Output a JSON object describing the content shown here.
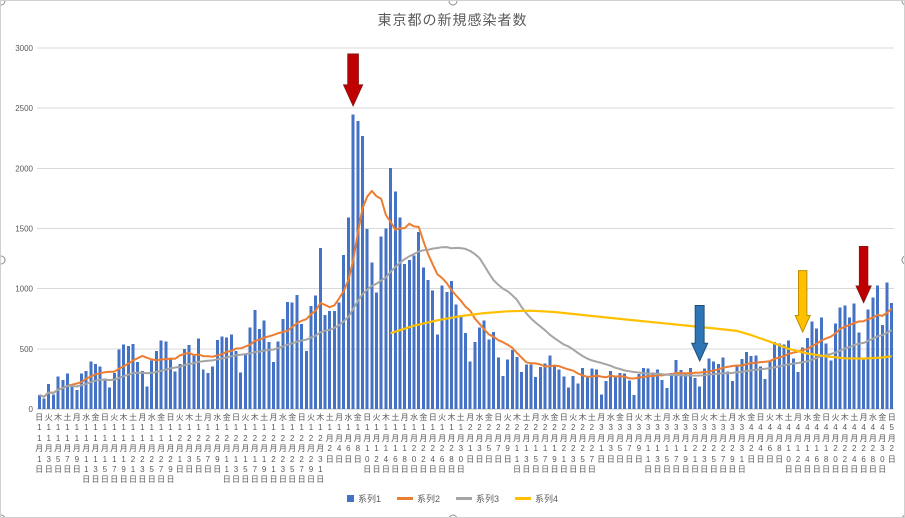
{
  "chart_data": {
    "type": "combo-bar-line",
    "title": "東京都の新規感染者数",
    "ylim": [
      0,
      3000
    ],
    "y_ticks": [
      0,
      500,
      1000,
      1500,
      2000,
      2500,
      3000
    ],
    "x_start_date": "2020-11-01",
    "x_end_date": "2021-05-02",
    "x_label_every_days": 2,
    "x_labels": [
      "日11月1日",
      "火11月3日",
      "木11月5日",
      "土11月7日",
      "月11月9日",
      "水11月11日",
      "金11月13日",
      "日11月15日",
      "火11月17日",
      "木11月19日",
      "土11月21日",
      "月11月23日",
      "水11月25日",
      "金11月27日",
      "日11月29日",
      "火12月1日",
      "木12月3日",
      "土12月5日",
      "月12月7日",
      "水12月9日",
      "金12月11日",
      "日12月13日",
      "火12月15日",
      "木12月17日",
      "土12月19日",
      "月12月21日",
      "水12月23日",
      "金12月25日",
      "日12月27日",
      "火12月29日",
      "木12月31日",
      "土1月2日",
      "月1月4日",
      "水1月6日",
      "金1月8日",
      "日1月10日",
      "火1月12日",
      "木1月14日",
      "土1月16日",
      "月1月18日",
      "水1月20日",
      "金1月22日",
      "日1月24日",
      "火1月26日",
      "木1月28日",
      "土1月30日",
      "月2月1日",
      "水2月3日",
      "金2月5日",
      "日2月7日",
      "火2月9日",
      "木2月11日",
      "土2月13日",
      "月2月15日",
      "水2月17日",
      "金2月19日",
      "日2月21日",
      "火2月23日",
      "木2月25日",
      "土2月27日",
      "月3月1日",
      "水3月3日",
      "金3月5日",
      "日3月7日",
      "火3月9日",
      "木3月11日",
      "土3月13日",
      "月3月15日",
      "水3月17日",
      "金3月19日",
      "日3月21日",
      "火3月23日",
      "木3月25日",
      "土3月27日",
      "月3月29日",
      "水3月31日",
      "金4月2日",
      "日4月4日",
      "火4月6日",
      "木4月8日",
      "土4月10日",
      "月4月12日",
      "水4月14日",
      "金4月16日",
      "日4月18日",
      "火4月20日",
      "木4月22日",
      "土4月24日",
      "月4月26日",
      "水4月28日",
      "金4月30日",
      "日5月2日"
    ],
    "series": [
      {
        "name": "系列1",
        "type": "bar",
        "color": "#4472C4",
        "values": [
          116,
          87,
          209,
          122,
          269,
          242,
          294,
          189,
          157,
          293,
          317,
          393,
          374,
          352,
          255,
          180,
          298,
          493,
          534,
          522,
          539,
          391,
          314,
          186,
          401,
          481,
          570,
          561,
          418,
          311,
          372,
          500,
          533,
          449,
          584,
          327,
          299,
          352,
          572,
          602,
          595,
          621,
          480,
          305,
          460,
          678,
          822,
          664,
          736,
          556,
          392,
          563,
          748,
          888,
          884,
          949,
          708,
          481,
          856,
          944,
          1337,
          783,
          814,
          816,
          884,
          1278,
          1591,
          2447,
          2392,
          2268,
          1494,
          1219,
          970,
          1433,
          1502,
          2001,
          1809,
          1592,
          1204,
          1240,
          1274,
          1471,
          1175,
          1070,
          986,
          618,
          1026,
          973,
          1064,
          868,
          769,
          633,
          393,
          556,
          676,
          734,
          577,
          639,
          429,
          276,
          412,
          491,
          434,
          307,
          369,
          371,
          266,
          350,
          378,
          445,
          353,
          327,
          272,
          178,
          275,
          213,
          340,
          270,
          337,
          329,
          121,
          232,
          316,
          279,
          301,
          293,
          237,
          116,
          290,
          340,
          335,
          304,
          330,
          239,
          175,
          300,
          409,
          323,
          303,
          342,
          256,
          187,
          337,
          420,
          394,
          376,
          430,
          313,
          234,
          364,
          414,
          475,
          440,
          446,
          355,
          249,
          399,
          555,
          545,
          537,
          570,
          421,
          306,
          510,
          591,
          729,
          667,
          759,
          543,
          405,
          711,
          843,
          861,
          759,
          876,
          635,
          425,
          828,
          925,
          1027,
          698,
          1050,
          879
        ]
      },
      {
        "name": "系列2",
        "type": "line",
        "color": "#ED7D31",
        "derived": "7-day trailing moving average of 系列1",
        "window": 7
      },
      {
        "name": "系列3",
        "type": "line",
        "color": "#A5A5A5",
        "derived": "28-day trailing moving average of 系列1",
        "window": 28
      },
      {
        "name": "系列4",
        "type": "line",
        "color": "#FFC000",
        "points": [
          [
            75,
            630
          ],
          [
            80,
            692
          ],
          [
            85,
            737
          ],
          [
            90,
            772
          ],
          [
            95,
            797
          ],
          [
            100,
            812
          ],
          [
            105,
            817
          ],
          [
            110,
            806
          ],
          [
            117,
            777
          ],
          [
            124,
            749
          ],
          [
            131,
            721
          ],
          [
            138,
            694
          ],
          [
            144,
            670
          ],
          [
            149,
            649
          ],
          [
            152,
            614
          ],
          [
            156,
            559
          ],
          [
            160,
            500
          ],
          [
            164,
            461
          ],
          [
            168,
            437
          ],
          [
            172,
            421
          ],
          [
            176,
            419
          ],
          [
            180,
            428
          ],
          [
            182,
            438
          ]
        ]
      }
    ],
    "annotations": [
      {
        "id": "red-arrow-jan7",
        "shape": "down-arrow",
        "fill": "#C00000",
        "stroke": "#8A1414",
        "day": 67,
        "top_value": 2950,
        "tip_value": 2520,
        "width": 19
      },
      {
        "id": "blue-arrow-mar21",
        "shape": "down-arrow",
        "fill": "#2E75B6",
        "stroke": "#1F4E79",
        "day": 141,
        "top_value": 860,
        "tip_value": 400,
        "width": 16
      },
      {
        "id": "gold-arrow-apr12",
        "shape": "down-arrow",
        "fill": "#FFC000",
        "stroke": "#BF8F00",
        "day": 163,
        "top_value": 1150,
        "tip_value": 640,
        "width": 15
      },
      {
        "id": "red-arrow-apr25",
        "shape": "down-arrow",
        "fill": "#C00000",
        "stroke": "#8A1414",
        "day": 176,
        "top_value": 1350,
        "tip_value": 885,
        "width": 15
      }
    ],
    "legend_position": "bottom",
    "grid": true
  },
  "colors": {
    "gridline": "#D9D9D9",
    "axis_line": "#BFBFBF",
    "tick_text": "#595959"
  }
}
